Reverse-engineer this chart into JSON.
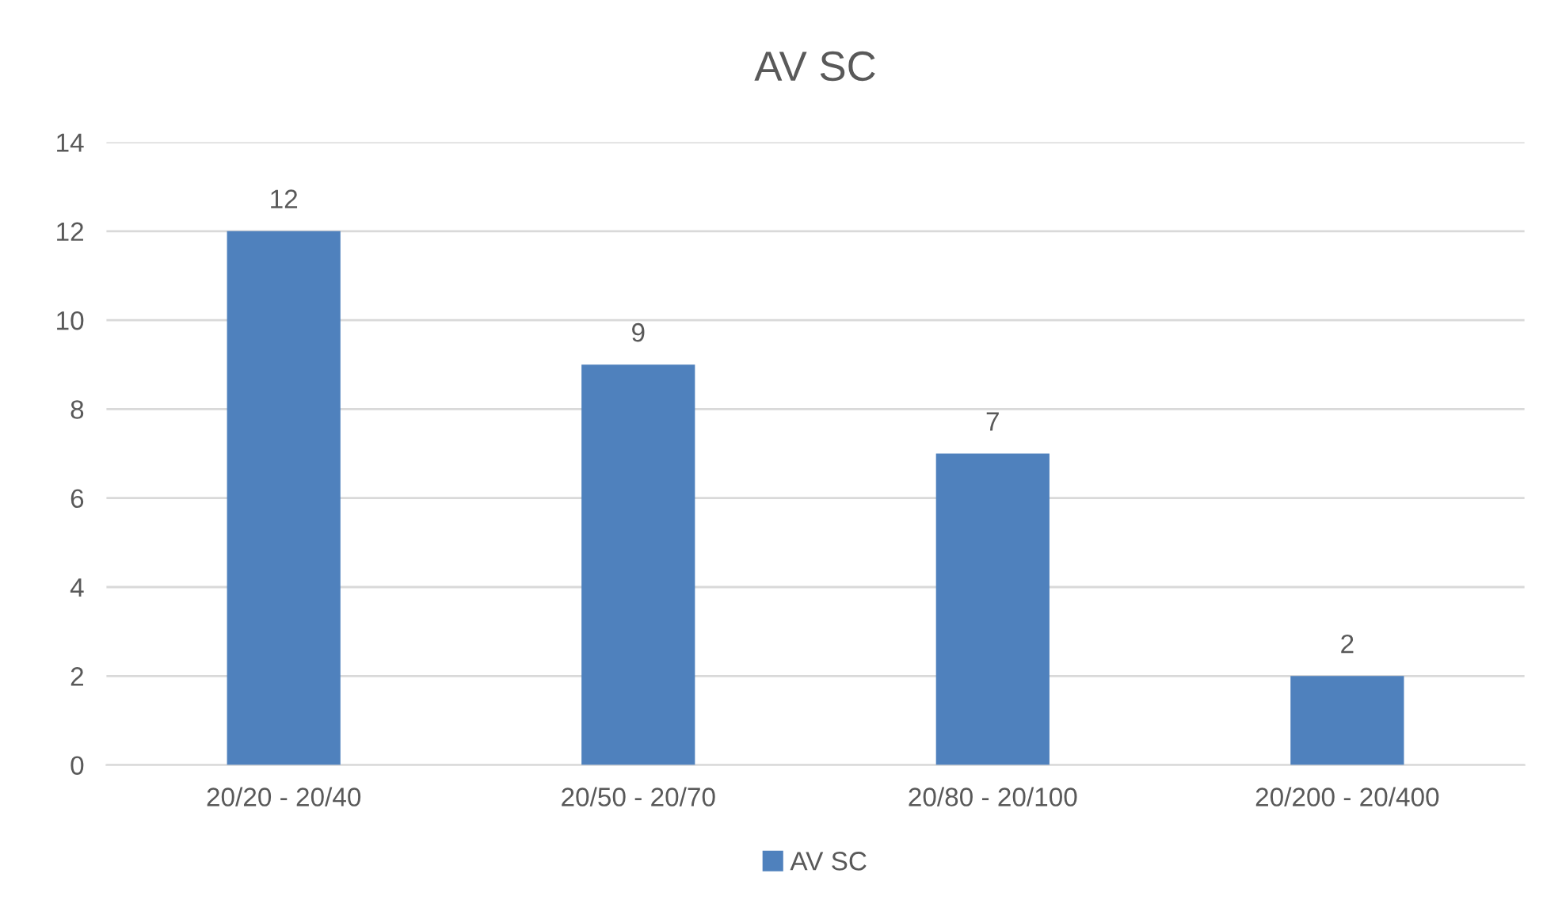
{
  "chart_data": {
    "type": "bar",
    "title": "AV SC",
    "categories": [
      "20/20 - 20/40",
      "20/50 - 20/70",
      "20/80 - 20/100",
      "20/200 - 20/400"
    ],
    "series": [
      {
        "name": "AV SC",
        "color": "#4f81bd",
        "values": [
          12,
          9,
          7,
          2
        ]
      }
    ],
    "ylim": [
      0,
      14
    ],
    "yticks": [
      0,
      2,
      4,
      6,
      8,
      10,
      12,
      14
    ],
    "grid": "y",
    "legend": "bottom",
    "data_labels": true
  }
}
